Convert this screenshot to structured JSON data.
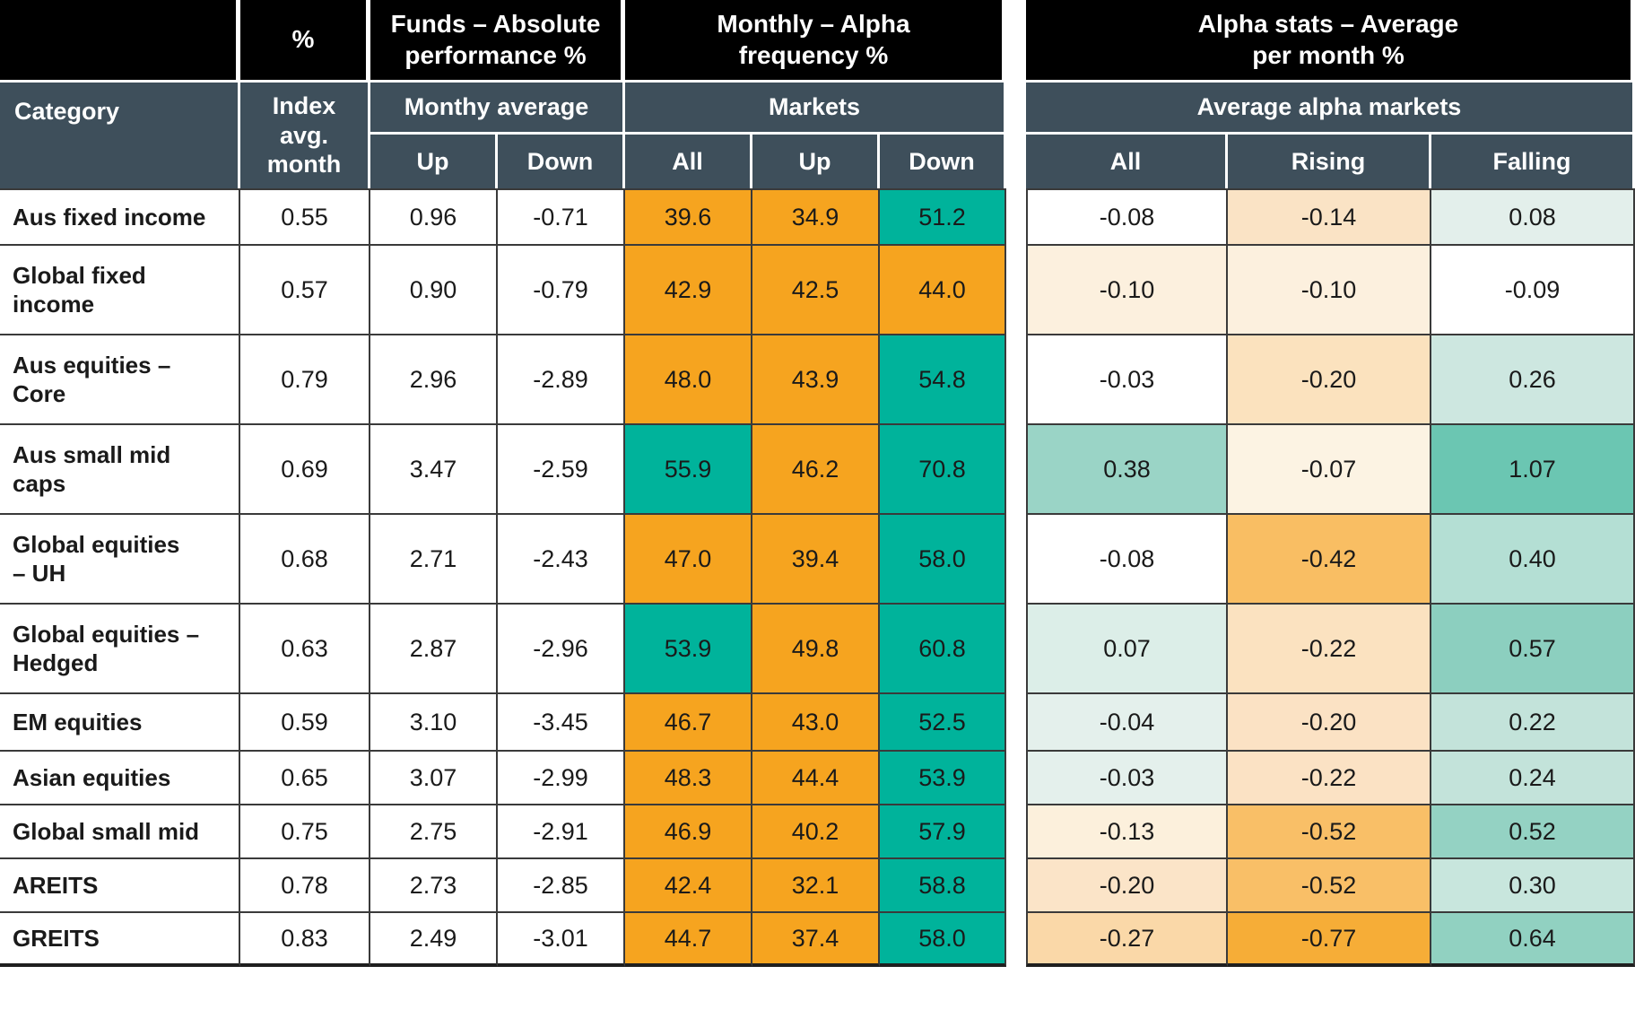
{
  "palette": {
    "header_bg": "#000000",
    "subheader_bg": "#3E4F5B",
    "header_text": "#FFFFFF",
    "body_text": "#1A1A1A",
    "grid_line": "#3A3A3A",
    "orange": "#F6A41F",
    "teal": "#00B39B"
  },
  "chart_data": {
    "type": "table",
    "top_headers": [
      "%",
      "Funds – Absolute\nperformance %",
      "Monthly – Alpha\nfrequency %",
      "Alpha stats – Average\nper month %"
    ],
    "category_header": "Category",
    "index_header": "Index\navg.\nmonth",
    "group_headers": [
      "Monthy average",
      "Markets",
      "Average alpha markets"
    ],
    "sub_columns": [
      "Up",
      "Down",
      "All",
      "Up",
      "Down",
      "All",
      "Rising",
      "Falling"
    ],
    "rows": [
      {
        "category": "Aus fixed income",
        "cells": [
          {
            "v": "0.55"
          },
          {
            "v": "0.96"
          },
          {
            "v": "-0.71"
          },
          {
            "v": "39.6",
            "bg": "#F6A41F"
          },
          {
            "v": "34.9",
            "bg": "#F6A41F"
          },
          {
            "v": "51.2",
            "bg": "#00B39B"
          },
          {
            "v": "-0.08",
            "bg": "#FFFFFF"
          },
          {
            "v": "-0.14",
            "bg": "#FAE3C5"
          },
          {
            "v": "0.08",
            "bg": "#E3EFEB"
          }
        ]
      },
      {
        "category": "Global fixed\nincome",
        "cells": [
          {
            "v": "0.57"
          },
          {
            "v": "0.90"
          },
          {
            "v": "-0.79"
          },
          {
            "v": "42.9",
            "bg": "#F6A41F"
          },
          {
            "v": "42.5",
            "bg": "#F6A41F"
          },
          {
            "v": "44.0",
            "bg": "#F6A41F"
          },
          {
            "v": "-0.10",
            "bg": "#FCF0DE"
          },
          {
            "v": "-0.10",
            "bg": "#FCF0DE"
          },
          {
            "v": "-0.09",
            "bg": "#FFFFFF"
          }
        ]
      },
      {
        "category": "Aus equities –\nCore",
        "cells": [
          {
            "v": "0.79"
          },
          {
            "v": "2.96"
          },
          {
            "v": "-2.89"
          },
          {
            "v": "48.0",
            "bg": "#F6A41F"
          },
          {
            "v": "43.9",
            "bg": "#F6A41F"
          },
          {
            "v": "54.8",
            "bg": "#00B39B"
          },
          {
            "v": "-0.03",
            "bg": "#FFFFFF"
          },
          {
            "v": "-0.20",
            "bg": "#FBE2BE"
          },
          {
            "v": "0.26",
            "bg": "#CDE7E0"
          }
        ]
      },
      {
        "category": "Aus small mid\ncaps",
        "cells": [
          {
            "v": "0.69"
          },
          {
            "v": "3.47"
          },
          {
            "v": "-2.59"
          },
          {
            "v": "55.9",
            "bg": "#00B39B"
          },
          {
            "v": "46.2",
            "bg": "#F6A41F"
          },
          {
            "v": "70.8",
            "bg": "#00B39B"
          },
          {
            "v": "0.38",
            "bg": "#9AD4C6"
          },
          {
            "v": "-0.07",
            "bg": "#FCF3E3"
          },
          {
            "v": "1.07",
            "bg": "#6BC6B2"
          }
        ]
      },
      {
        "category": "Global equities\n– UH",
        "cells": [
          {
            "v": "0.68"
          },
          {
            "v": "2.71"
          },
          {
            "v": "-2.43"
          },
          {
            "v": "47.0",
            "bg": "#F6A41F"
          },
          {
            "v": "39.4",
            "bg": "#F6A41F"
          },
          {
            "v": "58.0",
            "bg": "#00B39B"
          },
          {
            "v": "-0.08",
            "bg": "#FFFFFF"
          },
          {
            "v": "-0.42",
            "bg": "#F9BE63"
          },
          {
            "v": "0.40",
            "bg": "#B4DFD4"
          }
        ]
      },
      {
        "category": "Global equities –\nHedged",
        "cells": [
          {
            "v": "0.63"
          },
          {
            "v": "2.87"
          },
          {
            "v": "-2.96"
          },
          {
            "v": "53.9",
            "bg": "#00B39B"
          },
          {
            "v": "49.8",
            "bg": "#F6A41F"
          },
          {
            "v": "60.8",
            "bg": "#00B39B"
          },
          {
            "v": "0.07",
            "bg": "#DCEEE8"
          },
          {
            "v": "-0.22",
            "bg": "#FBE2C0"
          },
          {
            "v": "0.57",
            "bg": "#8CCFBF"
          }
        ]
      },
      {
        "category": "EM equities",
        "cells": [
          {
            "v": "0.59"
          },
          {
            "v": "3.10"
          },
          {
            "v": "-3.45"
          },
          {
            "v": "46.7",
            "bg": "#F6A41F"
          },
          {
            "v": "43.0",
            "bg": "#F6A41F"
          },
          {
            "v": "52.5",
            "bg": "#00B39B"
          },
          {
            "v": "-0.04",
            "bg": "#E4F0EC"
          },
          {
            "v": "-0.20",
            "bg": "#FBE2C4"
          },
          {
            "v": "0.22",
            "bg": "#C3E3DA"
          }
        ]
      },
      {
        "category": "Asian equities",
        "cells": [
          {
            "v": "0.65"
          },
          {
            "v": "3.07"
          },
          {
            "v": "-2.99"
          },
          {
            "v": "48.3",
            "bg": "#F6A41F"
          },
          {
            "v": "44.4",
            "bg": "#F6A41F"
          },
          {
            "v": "53.9",
            "bg": "#00B39B"
          },
          {
            "v": "-0.03",
            "bg": "#E4F0EC"
          },
          {
            "v": "-0.22",
            "bg": "#FBE2C4"
          },
          {
            "v": "0.24",
            "bg": "#C3E3DA"
          }
        ]
      },
      {
        "category": "Global small mid",
        "cells": [
          {
            "v": "0.75"
          },
          {
            "v": "2.75"
          },
          {
            "v": "-2.91"
          },
          {
            "v": "46.9",
            "bg": "#F6A41F"
          },
          {
            "v": "40.2",
            "bg": "#F6A41F"
          },
          {
            "v": "57.9",
            "bg": "#00B39B"
          },
          {
            "v": "-0.13",
            "bg": "#FCF0DC"
          },
          {
            "v": "-0.52",
            "bg": "#F9BF67"
          },
          {
            "v": "0.52",
            "bg": "#94D2C3"
          }
        ]
      },
      {
        "category": "AREITS",
        "cells": [
          {
            "v": "0.78"
          },
          {
            "v": "2.73"
          },
          {
            "v": "-2.85"
          },
          {
            "v": "42.4",
            "bg": "#F6A41F"
          },
          {
            "v": "32.1",
            "bg": "#F6A41F"
          },
          {
            "v": "58.8",
            "bg": "#00B39B"
          },
          {
            "v": "-0.20",
            "bg": "#FBE4C8"
          },
          {
            "v": "-0.52",
            "bg": "#F9BF67"
          },
          {
            "v": "0.30",
            "bg": "#C8E6DD"
          }
        ]
      },
      {
        "category": "GREITS",
        "cells": [
          {
            "v": "0.83"
          },
          {
            "v": "2.49"
          },
          {
            "v": "-3.01"
          },
          {
            "v": "44.7",
            "bg": "#F6A41F"
          },
          {
            "v": "37.4",
            "bg": "#F6A41F"
          },
          {
            "v": "58.0",
            "bg": "#00B39B"
          },
          {
            "v": "-0.27",
            "bg": "#FAD8A8"
          },
          {
            "v": "-0.77",
            "bg": "#F6AD37"
          },
          {
            "v": "0.64",
            "bg": "#91D1C1"
          }
        ]
      }
    ]
  }
}
